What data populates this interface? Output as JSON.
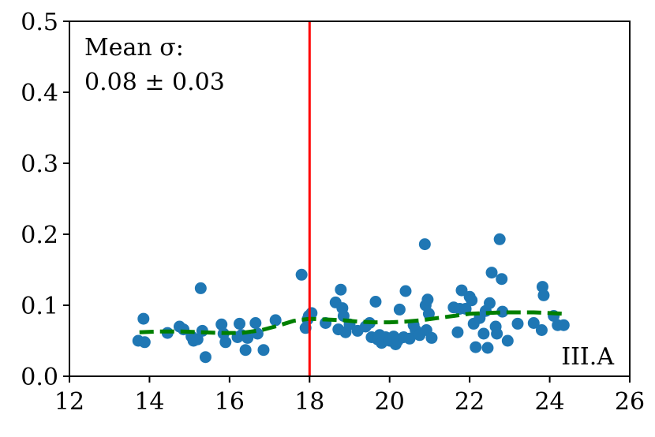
{
  "chart_data": {
    "type": "scatter",
    "xlim": [
      12,
      26
    ],
    "ylim": [
      0,
      0.5
    ],
    "x_ticks": [
      12,
      14,
      16,
      18,
      20,
      22,
      24,
      26
    ],
    "y_ticks": [
      0.0,
      0.1,
      0.2,
      0.3,
      0.4,
      0.5
    ],
    "x_tick_labels": [
      "12",
      "14",
      "16",
      "18",
      "20",
      "22",
      "24",
      "26"
    ],
    "y_tick_labels": [
      "0.0",
      "0.1",
      "0.2",
      "0.3",
      "0.4",
      "0.5"
    ],
    "grid": false,
    "vline_x": 18,
    "vline_color": "#ff0000",
    "point_color": "#1f77b4",
    "trend_color": "#007f00",
    "annotation_line1": "Mean σ:",
    "annotation_line2": "0.08 ± 0.03",
    "panel_label": "III.A",
    "points": [
      [
        13.72,
        0.05
      ],
      [
        13.85,
        0.081
      ],
      [
        13.88,
        0.048
      ],
      [
        14.45,
        0.061
      ],
      [
        14.75,
        0.07
      ],
      [
        14.85,
        0.066
      ],
      [
        15.05,
        0.056
      ],
      [
        15.1,
        0.05
      ],
      [
        15.2,
        0.052
      ],
      [
        15.28,
        0.124
      ],
      [
        15.32,
        0.064
      ],
      [
        15.4,
        0.027
      ],
      [
        15.8,
        0.073
      ],
      [
        15.85,
        0.06
      ],
      [
        15.9,
        0.048
      ],
      [
        16.2,
        0.055
      ],
      [
        16.25,
        0.074
      ],
      [
        16.3,
        0.058
      ],
      [
        16.4,
        0.037
      ],
      [
        16.45,
        0.054
      ],
      [
        16.65,
        0.075
      ],
      [
        16.7,
        0.06
      ],
      [
        16.85,
        0.037
      ],
      [
        17.15,
        0.079
      ],
      [
        17.8,
        0.143
      ],
      [
        17.9,
        0.068
      ],
      [
        17.95,
        0.08
      ],
      [
        17.98,
        0.085
      ],
      [
        18.05,
        0.089
      ],
      [
        18.4,
        0.075
      ],
      [
        18.65,
        0.104
      ],
      [
        18.72,
        0.066
      ],
      [
        18.78,
        0.122
      ],
      [
        18.82,
        0.096
      ],
      [
        18.85,
        0.085
      ],
      [
        18.9,
        0.062
      ],
      [
        19.0,
        0.073
      ],
      [
        19.2,
        0.064
      ],
      [
        19.4,
        0.07
      ],
      [
        19.5,
        0.075
      ],
      [
        19.55,
        0.055
      ],
      [
        19.65,
        0.105
      ],
      [
        19.7,
        0.052
      ],
      [
        19.75,
        0.058
      ],
      [
        19.8,
        0.047
      ],
      [
        19.9,
        0.055
      ],
      [
        20.0,
        0.05
      ],
      [
        20.1,
        0.056
      ],
      [
        20.15,
        0.045
      ],
      [
        20.2,
        0.05
      ],
      [
        20.25,
        0.094
      ],
      [
        20.35,
        0.055
      ],
      [
        20.4,
        0.12
      ],
      [
        20.5,
        0.053
      ],
      [
        20.6,
        0.072
      ],
      [
        20.65,
        0.065
      ],
      [
        20.75,
        0.058
      ],
      [
        20.88,
        0.186
      ],
      [
        20.9,
        0.1
      ],
      [
        20.92,
        0.065
      ],
      [
        20.95,
        0.108
      ],
      [
        20.98,
        0.088
      ],
      [
        21.05,
        0.054
      ],
      [
        21.6,
        0.097
      ],
      [
        21.7,
        0.062
      ],
      [
        21.75,
        0.095
      ],
      [
        21.8,
        0.121
      ],
      [
        21.9,
        0.095
      ],
      [
        22.0,
        0.112
      ],
      [
        22.05,
        0.107
      ],
      [
        22.1,
        0.074
      ],
      [
        22.15,
        0.041
      ],
      [
        22.25,
        0.082
      ],
      [
        22.35,
        0.06
      ],
      [
        22.4,
        0.092
      ],
      [
        22.45,
        0.04
      ],
      [
        22.5,
        0.103
      ],
      [
        22.55,
        0.146
      ],
      [
        22.65,
        0.07
      ],
      [
        22.68,
        0.06
      ],
      [
        22.75,
        0.193
      ],
      [
        22.8,
        0.137
      ],
      [
        22.82,
        0.091
      ],
      [
        22.95,
        0.05
      ],
      [
        23.2,
        0.074
      ],
      [
        23.6,
        0.075
      ],
      [
        23.8,
        0.065
      ],
      [
        23.82,
        0.126
      ],
      [
        23.85,
        0.114
      ],
      [
        24.1,
        0.085
      ],
      [
        24.2,
        0.072
      ],
      [
        24.35,
        0.072
      ]
    ],
    "trend": [
      [
        13.75,
        0.062
      ],
      [
        14.2,
        0.063
      ],
      [
        14.8,
        0.063
      ],
      [
        15.3,
        0.062
      ],
      [
        15.8,
        0.061
      ],
      [
        16.3,
        0.061
      ],
      [
        16.8,
        0.065
      ],
      [
        17.2,
        0.071
      ],
      [
        17.6,
        0.078
      ],
      [
        18.0,
        0.081
      ],
      [
        18.4,
        0.08
      ],
      [
        18.8,
        0.079
      ],
      [
        19.2,
        0.077
      ],
      [
        19.6,
        0.076
      ],
      [
        20.0,
        0.076
      ],
      [
        20.4,
        0.077
      ],
      [
        20.8,
        0.079
      ],
      [
        21.2,
        0.082
      ],
      [
        21.6,
        0.085
      ],
      [
        22.0,
        0.088
      ],
      [
        22.4,
        0.089
      ],
      [
        22.8,
        0.09
      ],
      [
        23.2,
        0.09
      ],
      [
        23.6,
        0.09
      ],
      [
        24.0,
        0.089
      ],
      [
        24.35,
        0.088
      ]
    ]
  }
}
